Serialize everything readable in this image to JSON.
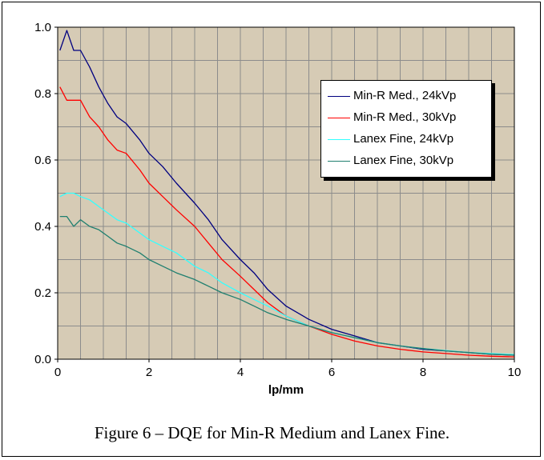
{
  "chart_data": {
    "type": "line",
    "title": "",
    "xlabel": "lp/mm",
    "ylabel": "",
    "xlim": [
      0,
      10
    ],
    "ylim": [
      0,
      1.0
    ],
    "x_ticks": [
      "0",
      "2",
      "4",
      "6",
      "8",
      "10"
    ],
    "y_ticks": [
      "0.0",
      "0.2",
      "0.4",
      "0.6",
      "0.8",
      "1.0"
    ],
    "grid": true,
    "legend_position": "top-right",
    "series": [
      {
        "name": "Min-R Med., 24kVp",
        "color": "#000080",
        "x": [
          0.05,
          0.2,
          0.35,
          0.5,
          0.7,
          0.9,
          1.1,
          1.3,
          1.5,
          1.8,
          2.0,
          2.3,
          2.6,
          3.0,
          3.3,
          3.6,
          4.0,
          4.3,
          4.6,
          5.0,
          5.5,
          6.0,
          6.5,
          7.0,
          7.5,
          8.0,
          8.5,
          9.0,
          9.5,
          10.0
        ],
        "y": [
          0.93,
          0.99,
          0.93,
          0.93,
          0.88,
          0.82,
          0.77,
          0.73,
          0.71,
          0.66,
          0.62,
          0.58,
          0.53,
          0.47,
          0.42,
          0.36,
          0.3,
          0.26,
          0.21,
          0.16,
          0.12,
          0.09,
          0.07,
          0.05,
          0.04,
          0.03,
          0.025,
          0.02,
          0.015,
          0.012
        ]
      },
      {
        "name": "Min-R Med., 30kVp",
        "color": "#ff0000",
        "x": [
          0.05,
          0.2,
          0.35,
          0.5,
          0.7,
          0.9,
          1.1,
          1.3,
          1.5,
          1.8,
          2.0,
          2.3,
          2.6,
          3.0,
          3.3,
          3.6,
          4.0,
          4.3,
          4.6,
          5.0,
          5.5,
          6.0,
          6.5,
          7.0,
          7.5,
          8.0,
          8.5,
          9.0,
          9.5,
          10.0
        ],
        "y": [
          0.82,
          0.78,
          0.78,
          0.78,
          0.73,
          0.7,
          0.66,
          0.63,
          0.62,
          0.57,
          0.53,
          0.49,
          0.45,
          0.4,
          0.35,
          0.3,
          0.25,
          0.21,
          0.17,
          0.13,
          0.1,
          0.075,
          0.055,
          0.04,
          0.03,
          0.022,
          0.017,
          0.012,
          0.009,
          0.007
        ]
      },
      {
        "name": "Lanex Fine, 24kVp",
        "color": "#33ffff",
        "x": [
          0.05,
          0.2,
          0.35,
          0.5,
          0.7,
          0.9,
          1.1,
          1.3,
          1.5,
          1.8,
          2.0,
          2.3,
          2.6,
          3.0,
          3.3,
          3.6,
          4.0,
          4.3,
          4.6,
          5.0,
          5.5,
          6.0,
          6.5,
          7.0,
          7.5,
          8.0,
          8.5,
          9.0,
          9.5,
          10.0
        ],
        "y": [
          0.49,
          0.5,
          0.5,
          0.49,
          0.48,
          0.46,
          0.44,
          0.42,
          0.41,
          0.38,
          0.36,
          0.34,
          0.32,
          0.28,
          0.26,
          0.23,
          0.2,
          0.18,
          0.16,
          0.13,
          0.1,
          0.08,
          0.065,
          0.05,
          0.04,
          0.032,
          0.026,
          0.02,
          0.017,
          0.014
        ]
      },
      {
        "name": "Lanex Fine, 30kVp",
        "color": "#1f7f6f",
        "x": [
          0.05,
          0.2,
          0.35,
          0.5,
          0.7,
          0.9,
          1.1,
          1.3,
          1.5,
          1.8,
          2.0,
          2.3,
          2.6,
          3.0,
          3.3,
          3.6,
          4.0,
          4.3,
          4.6,
          5.0,
          5.5,
          6.0,
          6.5,
          7.0,
          7.5,
          8.0,
          8.5,
          9.0,
          9.5,
          10.0
        ],
        "y": [
          0.43,
          0.43,
          0.4,
          0.42,
          0.4,
          0.39,
          0.37,
          0.35,
          0.34,
          0.32,
          0.3,
          0.28,
          0.26,
          0.24,
          0.22,
          0.2,
          0.18,
          0.16,
          0.14,
          0.12,
          0.1,
          0.08,
          0.065,
          0.05,
          0.04,
          0.032,
          0.025,
          0.02,
          0.015,
          0.012
        ]
      }
    ],
    "plot_background": "#d6cbb5",
    "grid_color": "#8c8c8c"
  },
  "caption": "Figure 6 – DQE for Min-R Medium and Lanex Fine."
}
